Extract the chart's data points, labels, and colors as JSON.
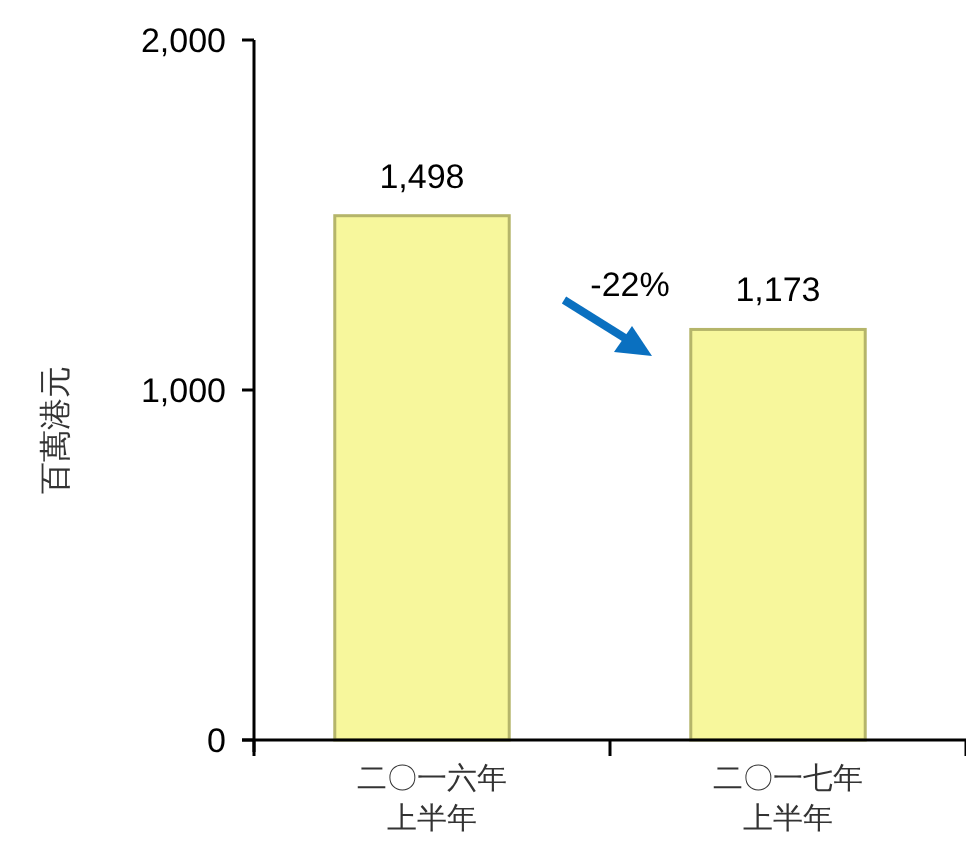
{
  "chart_data": {
    "type": "bar",
    "ylabel": "百萬港元",
    "categories": [
      "二〇一六年上半年",
      "二〇一七年上半年"
    ],
    "values": [
      1498,
      1173
    ],
    "color": "#f7f79c",
    "value_labels": [
      "1,498",
      "1,173"
    ],
    "ylim": [
      0,
      2000
    ],
    "yticks": [
      0,
      {
        "value": 1000,
        "label": "1,000"
      },
      {
        "value": 2000,
        "label": "2,000"
      }
    ],
    "grid": false,
    "annotations": [
      "-22%"
    ]
  }
}
